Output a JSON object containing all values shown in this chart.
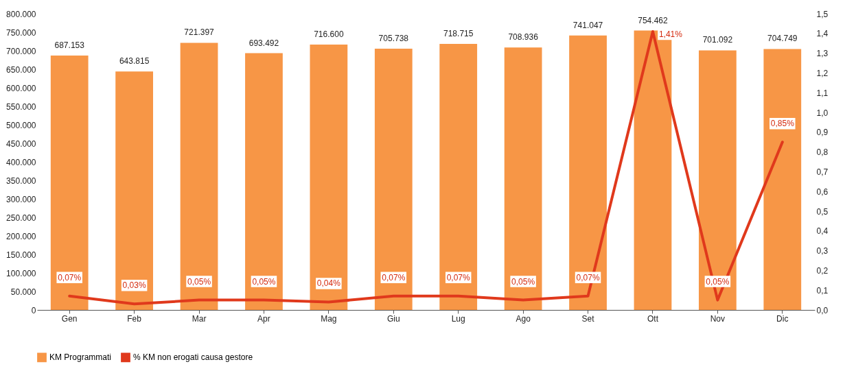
{
  "chart_data": {
    "type": "bar",
    "categories": [
      "Gen",
      "Feb",
      "Mar",
      "Apr",
      "Mag",
      "Giu",
      "Lug",
      "Ago",
      "Set",
      "Ott",
      "Nov",
      "Dic"
    ],
    "series": [
      {
        "name": "KM Programmati",
        "color": "#f79646",
        "values": [
          687153,
          643815,
          721397,
          693492,
          716600,
          705738,
          718715,
          708936,
          741047,
          754462,
          701092,
          704749
        ],
        "value_labels": [
          "687.153",
          "643.815",
          "721.397",
          "693.492",
          "716.600",
          "705.738",
          "718.715",
          "708.936",
          "741.047",
          "754.462",
          "701.092",
          "704.749"
        ]
      },
      {
        "name": "% KM non erogati causa gestore",
        "type": "line",
        "axis": "y2",
        "color": "#e0391c",
        "values": [
          0.07,
          0.03,
          0.05,
          0.05,
          0.04,
          0.07,
          0.07,
          0.05,
          0.07,
          1.41,
          0.05,
          0.85
        ],
        "value_labels": [
          "0,07%",
          "0,03%",
          "0,05%",
          "0,05%",
          "0,04%",
          "0,07%",
          "0,07%",
          "0,05%",
          "0,07%",
          "1,41%",
          "0,05%",
          "0,85%"
        ]
      }
    ],
    "ylim": [
      0,
      800000
    ],
    "yticks": [
      0,
      {
        "value": 50000,
        "label": "50.000"
      },
      {
        "value": 100000,
        "label": "100.000"
      },
      {
        "value": 150000,
        "label": "150.000"
      },
      {
        "value": 200000,
        "label": "200.000"
      },
      {
        "value": 250000,
        "label": "250.000"
      },
      {
        "value": 300000,
        "label": "300.000"
      },
      {
        "value": 350000,
        "label": "350.000"
      },
      {
        "value": 400000,
        "label": "400.000"
      },
      {
        "value": 450000,
        "label": "450.000"
      },
      {
        "value": 500000,
        "label": "500.000"
      },
      {
        "value": 550000,
        "label": "550.000"
      },
      {
        "value": 600000,
        "label": "600.000"
      },
      {
        "value": 650000,
        "label": "650.000"
      },
      {
        "value": 700000,
        "label": "700.000"
      },
      {
        "value": 750000,
        "label": "750.000"
      },
      {
        "value": 800000,
        "label": "800.000"
      }
    ],
    "y2lim": [
      0,
      1.5
    ],
    "y2ticks": [
      {
        "value": 0,
        "label": "0,0"
      },
      {
        "value": 0.1,
        "label": "0,1"
      },
      {
        "value": 0.2,
        "label": "0,2"
      },
      {
        "value": 0.3,
        "label": "0,3"
      },
      {
        "value": 0.4,
        "label": "0,4"
      },
      {
        "value": 0.5,
        "label": "0,5"
      },
      {
        "value": 0.6,
        "label": "0,6"
      },
      {
        "value": 0.7,
        "label": "0,7"
      },
      {
        "value": 0.8,
        "label": "0,8"
      },
      {
        "value": 0.9,
        "label": "0,9"
      },
      {
        "value": 1,
        "label": "1,0"
      },
      {
        "value": 1.1,
        "label": "1,1"
      },
      {
        "value": 1.2,
        "label": "1,2"
      },
      {
        "value": 1.3,
        "label": "1,3"
      },
      {
        "value": 1.4,
        "label": "1,4"
      },
      {
        "value": 1.5,
        "label": "1,5"
      }
    ],
    "grid": false,
    "legend": "bottom left",
    "marker": "none",
    "line_style": "solid"
  }
}
